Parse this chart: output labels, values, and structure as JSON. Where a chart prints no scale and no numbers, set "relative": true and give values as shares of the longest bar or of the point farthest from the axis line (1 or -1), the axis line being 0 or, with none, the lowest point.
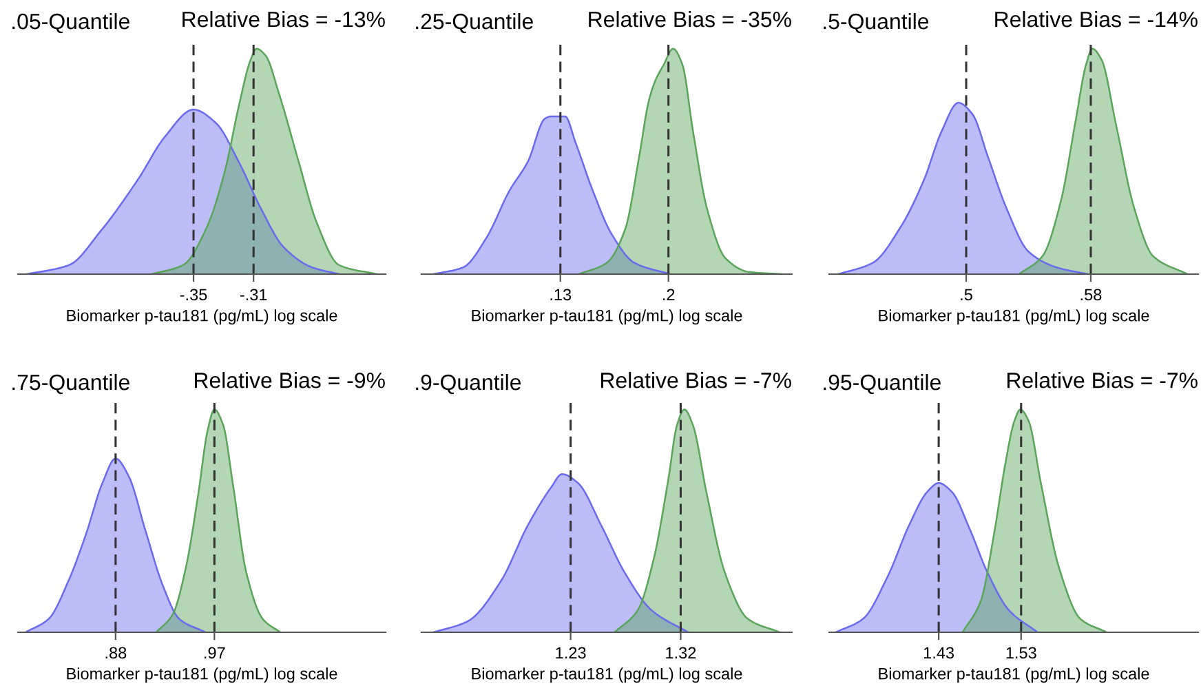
{
  "chart_data": [
    {
      "type": "area",
      "relative": true,
      "title": ".05-Quantile",
      "annotations": [
        "Relative Bias = -13%"
      ],
      "xlabel": "Biomarker p-tau181 (pg/mL) log scale",
      "xlim": [
        -0.467,
        -0.222
      ],
      "xticks": [
        {
          "value": -0.35,
          "label": "-.35"
        },
        {
          "value": -0.31,
          "label": "-.31"
        }
      ],
      "tick_labels": "x",
      "grid": false,
      "legend": false,
      "ref_lines": [
        {
          "axis": "x",
          "value": -0.35,
          "line_style": "dashed",
          "color": "#333333"
        },
        {
          "axis": "x",
          "value": -0.31,
          "line_style": "dashed",
          "color": "#333333"
        }
      ],
      "series": [
        {
          "color": "#6a6aee",
          "x": [
            -0.461,
            -0.433,
            -0.412,
            -0.387,
            -0.369,
            -0.35,
            -0.335,
            -0.32,
            -0.305,
            -0.29,
            -0.271,
            -0.253
          ],
          "values": [
            0,
            0.04,
            0.19,
            0.42,
            0.61,
            0.73,
            0.67,
            0.5,
            0.29,
            0.12,
            0.03,
            0
          ]
        },
        {
          "color": "#5aa55a",
          "x": [
            -0.378,
            -0.357,
            -0.341,
            -0.329,
            -0.32,
            -0.312,
            -0.308,
            -0.302,
            -0.293,
            -0.28,
            -0.268,
            -0.253,
            -0.228
          ],
          "values": [
            0,
            0.04,
            0.21,
            0.46,
            0.74,
            0.95,
            1,
            0.97,
            0.8,
            0.5,
            0.23,
            0.04,
            0
          ]
        }
      ]
    },
    {
      "type": "area",
      "relative": true,
      "title": ".25-Quantile",
      "annotations": [
        "Relative Bias = -35%"
      ],
      "xlabel": "Biomarker p-tau181 (pg/mL) log scale",
      "xlim": [
        0.04,
        0.28
      ],
      "xticks": [
        {
          "value": 0.13,
          "label": ".13"
        },
        {
          "value": 0.2,
          "label": ".2"
        }
      ],
      "tick_labels": "x",
      "grid": false,
      "legend": false,
      "ref_lines": [
        {
          "axis": "x",
          "value": 0.13,
          "line_style": "dashed",
          "color": "#333333"
        },
        {
          "axis": "x",
          "value": 0.2,
          "line_style": "dashed",
          "color": "#333333"
        }
      ],
      "series": [
        {
          "color": "#6a6aee",
          "x": [
            0.048,
            0.067,
            0.082,
            0.097,
            0.109,
            0.12,
            0.124,
            0.133,
            0.14,
            0.151,
            0.163,
            0.178,
            0.201
          ],
          "values": [
            0,
            0.03,
            0.16,
            0.37,
            0.5,
            0.69,
            0.7,
            0.7,
            0.58,
            0.37,
            0.18,
            0.05,
            0
          ]
        },
        {
          "color": "#5aa55a",
          "x": [
            0.142,
            0.16,
            0.172,
            0.181,
            0.187,
            0.191,
            0.197,
            0.203,
            0.209,
            0.216,
            0.225,
            0.237,
            0.252,
            0.273
          ],
          "values": [
            0,
            0.05,
            0.2,
            0.52,
            0.76,
            0.85,
            0.93,
            1,
            0.93,
            0.63,
            0.29,
            0.07,
            0.01,
            0
          ]
        }
      ]
    },
    {
      "type": "area",
      "relative": true,
      "title": ".5-Quantile",
      "annotations": [
        "Relative Bias = -14%"
      ],
      "xlabel": "Biomarker p-tau181 (pg/mL) log scale",
      "xlim": [
        0.412,
        0.649
      ],
      "xticks": [
        {
          "value": 0.5,
          "label": ".5"
        },
        {
          "value": 0.58,
          "label": ".58"
        }
      ],
      "tick_labels": "x",
      "grid": false,
      "legend": false,
      "ref_lines": [
        {
          "axis": "x",
          "value": 0.5,
          "line_style": "dashed",
          "color": "#333333"
        },
        {
          "axis": "x",
          "value": 0.58,
          "line_style": "dashed",
          "color": "#333333"
        }
      ],
      "series": [
        {
          "color": "#6a6aee",
          "x": [
            0.418,
            0.44,
            0.458,
            0.473,
            0.484,
            0.495,
            0.504,
            0.514,
            0.526,
            0.54,
            0.558,
            0.578
          ],
          "values": [
            0,
            0.05,
            0.21,
            0.42,
            0.63,
            0.76,
            0.71,
            0.52,
            0.29,
            0.1,
            0.03,
            0
          ]
        },
        {
          "color": "#5aa55a",
          "x": [
            0.534,
            0.549,
            0.561,
            0.57,
            0.577,
            0.581,
            0.587,
            0.596,
            0.608,
            0.62,
            0.642
          ],
          "values": [
            0,
            0.08,
            0.33,
            0.67,
            0.93,
            1,
            0.95,
            0.67,
            0.29,
            0.08,
            0
          ]
        }
      ]
    },
    {
      "type": "area",
      "relative": true,
      "title": ".75-Quantile",
      "annotations": [
        "Relative Bias = -9%"
      ],
      "xlabel": "Biomarker p-tau181 (pg/mL) log scale",
      "xlim": [
        0.791,
        1.126
      ],
      "xticks": [
        {
          "value": 0.88,
          "label": ".88"
        },
        {
          "value": 0.97,
          "label": ".97"
        }
      ],
      "tick_labels": "x",
      "grid": false,
      "legend": false,
      "ref_lines": [
        {
          "axis": "x",
          "value": 0.88,
          "line_style": "dashed",
          "color": "#333333"
        },
        {
          "axis": "x",
          "value": 0.97,
          "line_style": "dashed",
          "color": "#333333"
        }
      ],
      "series": [
        {
          "color": "#6a6aee",
          "x": [
            0.798,
            0.819,
            0.837,
            0.853,
            0.868,
            0.88,
            0.892,
            0.907,
            0.923,
            0.938,
            0.962
          ],
          "values": [
            0,
            0.06,
            0.23,
            0.44,
            0.67,
            0.78,
            0.7,
            0.46,
            0.21,
            0.06,
            0
          ]
        },
        {
          "color": "#5aa55a",
          "x": [
            0.917,
            0.932,
            0.944,
            0.955,
            0.964,
            0.97,
            0.978,
            0.987,
            0.999,
            1.014,
            1.03
          ],
          "values": [
            0,
            0.08,
            0.29,
            0.61,
            0.91,
            1,
            0.93,
            0.66,
            0.27,
            0.06,
            0
          ]
        }
      ]
    },
    {
      "type": "area",
      "relative": true,
      "title": ".9-Quantile",
      "annotations": [
        "Relative Bias = -7%"
      ],
      "xlabel": "Biomarker p-tau181 (pg/mL) log scale",
      "xlim": [
        1.108,
        1.411
      ],
      "xticks": [
        1.23,
        1.32
      ],
      "tick_labels": "x",
      "grid": false,
      "legend": false,
      "ref_lines": [
        {
          "axis": "x",
          "value": 1.23,
          "line_style": "dashed",
          "color": "#333333"
        },
        {
          "axis": "x",
          "value": 1.32,
          "line_style": "dashed",
          "color": "#333333"
        }
      ],
      "series": [
        {
          "color": "#6a6aee",
          "x": [
            1.118,
            1.146,
            1.173,
            1.195,
            1.214,
            1.223,
            1.236,
            1.255,
            1.274,
            1.296,
            1.326
          ],
          "values": [
            0,
            0.05,
            0.23,
            0.48,
            0.65,
            0.71,
            0.67,
            0.48,
            0.27,
            0.1,
            0
          ]
        },
        {
          "color": "#5aa55a",
          "x": [
            1.266,
            1.285,
            1.298,
            1.31,
            1.317,
            1.323,
            1.33,
            1.341,
            1.356,
            1.375,
            1.401
          ],
          "values": [
            0,
            0.1,
            0.33,
            0.69,
            0.93,
            1,
            0.93,
            0.63,
            0.27,
            0.06,
            0
          ]
        }
      ]
    },
    {
      "type": "area",
      "relative": true,
      "title": ".95-Quantile",
      "annotations": [
        "Relative Bias = -7%"
      ],
      "xlabel": "Biomarker p-tau181 (pg/mL) log scale",
      "xlim": [
        1.297,
        1.745
      ],
      "xticks": [
        1.43,
        1.53
      ],
      "tick_labels": "x",
      "grid": false,
      "legend": false,
      "ref_lines": [
        {
          "axis": "x",
          "value": 1.43,
          "line_style": "dashed",
          "color": "#333333"
        },
        {
          "axis": "x",
          "value": 1.53,
          "line_style": "dashed",
          "color": "#333333"
        }
      ],
      "series": [
        {
          "color": "#6a6aee",
          "x": [
            1.305,
            1.338,
            1.368,
            1.394,
            1.416,
            1.43,
            1.446,
            1.468,
            1.489,
            1.515,
            1.55
          ],
          "values": [
            0,
            0.06,
            0.25,
            0.48,
            0.63,
            0.67,
            0.63,
            0.46,
            0.27,
            0.1,
            0
          ]
        },
        {
          "color": "#5aa55a",
          "x": [
            1.459,
            1.481,
            1.498,
            1.511,
            1.522,
            1.529,
            1.539,
            1.554,
            1.576,
            1.602,
            1.634
          ],
          "values": [
            0,
            0.14,
            0.46,
            0.76,
            0.95,
            1,
            0.95,
            0.67,
            0.29,
            0.06,
            0
          ]
        }
      ]
    }
  ]
}
